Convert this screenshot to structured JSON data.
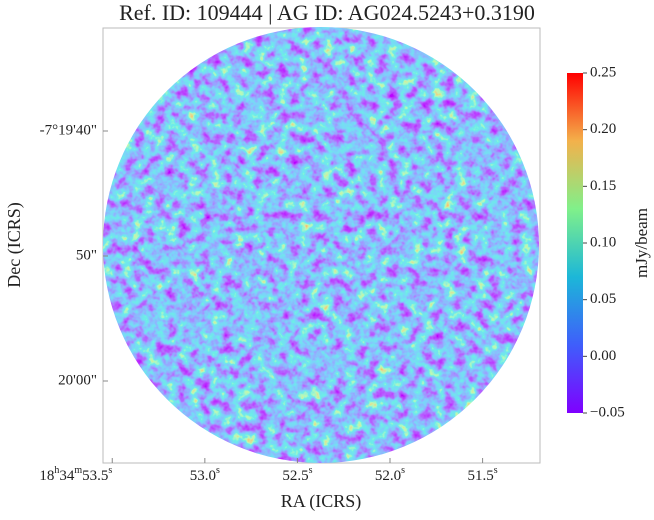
{
  "chart_data": {
    "type": "image",
    "title": "Ref. ID: 109444 | AG ID: AG024.5243+0.3190",
    "xlabel": "RA (ICRS)",
    "ylabel": "Dec (ICRS)",
    "xlim": [
      53.55,
      51.19
    ],
    "xticks": [
      {
        "value": 53.5,
        "label": "18h34m53.5s"
      },
      {
        "value": 53.0,
        "label": "53.0s"
      },
      {
        "value": 52.5,
        "label": "52.5s"
      },
      {
        "value": 52.0,
        "label": "52.0s"
      },
      {
        "value": 51.5,
        "label": "51.5s"
      }
    ],
    "ylim": [
      66.56,
      31.76
    ],
    "yticks": [
      {
        "value": 40,
        "label": "-7°19'40\""
      },
      {
        "value": 50,
        "label": "50\""
      },
      {
        "value": 60,
        "label": "20'00\""
      }
    ],
    "colorbar": {
      "label": "mJy/beam",
      "lim": [
        -0.05,
        0.25
      ],
      "ticks": [
        {
          "value": -0.05,
          "label": "−0.05"
        },
        {
          "value": 0,
          "label": "0.00"
        },
        {
          "value": 0.05,
          "label": "0.05"
        },
        {
          "value": 0.1,
          "label": "0.10"
        },
        {
          "value": 0.15,
          "label": "0.15"
        },
        {
          "value": 0.2,
          "label": "0.20"
        },
        {
          "value": 0.25,
          "label": "0.25"
        }
      ]
    }
  }
}
